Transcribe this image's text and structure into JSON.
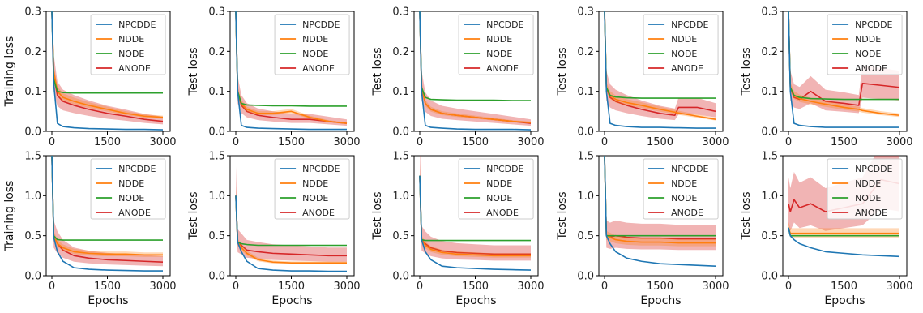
{
  "figure": {
    "legend_entries": [
      "NPCDDE",
      "NDDE",
      "NODE",
      "ANODE"
    ],
    "series_colors": {
      "NPCDDE": "#1f77b4",
      "NDDE": "#ff7f0e",
      "NODE": "#2ca02c",
      "ANODE": "#d62728"
    },
    "xlabel_bottom": "Epochs"
  },
  "chart_data": [
    {
      "type": "line",
      "row": 1,
      "col": 1,
      "ylabel": "Training loss",
      "xlabel": "",
      "xlim": [
        0,
        3000
      ],
      "ylim": [
        0,
        0.3
      ],
      "xticks": [
        0,
        1500,
        3000
      ],
      "yticks": [
        0.0,
        0.1,
        0.2,
        0.3
      ],
      "ytick_labels": [
        "0.0",
        "0.1",
        "0.2",
        "0.3"
      ],
      "legend": "top-right",
      "x": [
        0,
        50,
        150,
        300,
        600,
        1000,
        1500,
        2000,
        2500,
        3000
      ],
      "series": [
        {
          "name": "NPCDDE",
          "values": [
            0.3,
            0.12,
            0.02,
            0.012,
            0.009,
            0.007,
            0.006,
            0.005,
            0.005,
            0.004
          ]
        },
        {
          "name": "NDDE",
          "values": [
            0.3,
            0.15,
            0.1,
            0.085,
            0.075,
            0.065,
            0.055,
            0.045,
            0.038,
            0.035
          ]
        },
        {
          "name": "NODE",
          "values": [
            0.3,
            0.13,
            0.1,
            0.097,
            0.096,
            0.096,
            0.096,
            0.096,
            0.096,
            0.096
          ]
        },
        {
          "name": "ANODE",
          "values": [
            0.3,
            0.14,
            0.09,
            0.075,
            0.065,
            0.055,
            0.045,
            0.038,
            0.03,
            0.025
          ]
        }
      ]
    },
    {
      "type": "line",
      "row": 1,
      "col": 2,
      "ylabel": "Test loss",
      "xlabel": "",
      "xlim": [
        0,
        3000
      ],
      "ylim": [
        0,
        0.3
      ],
      "xticks": [
        0,
        1500,
        3000
      ],
      "yticks": [
        0.0,
        0.1,
        0.2,
        0.3
      ],
      "ytick_labels": [
        "0.0",
        "0.1",
        "0.2",
        "0.3"
      ],
      "legend": "top-right",
      "x": [
        0,
        50,
        150,
        300,
        600,
        1000,
        1500,
        2000,
        2500,
        3000
      ],
      "series": [
        {
          "name": "NPCDDE",
          "values": [
            0.3,
            0.1,
            0.015,
            0.01,
            0.008,
            0.007,
            0.006,
            0.005,
            0.005,
            0.005
          ]
        },
        {
          "name": "NDDE",
          "values": [
            0.3,
            0.1,
            0.07,
            0.055,
            0.045,
            0.045,
            0.05,
            0.035,
            0.025,
            0.02
          ]
        },
        {
          "name": "NODE",
          "values": [
            0.3,
            0.1,
            0.07,
            0.066,
            0.065,
            0.064,
            0.064,
            0.063,
            0.063,
            0.063
          ]
        },
        {
          "name": "ANODE",
          "values": [
            0.3,
            0.1,
            0.065,
            0.05,
            0.04,
            0.035,
            0.03,
            0.03,
            0.025,
            0.02
          ]
        }
      ]
    },
    {
      "type": "line",
      "row": 1,
      "col": 3,
      "ylabel": "Test loss",
      "xlabel": "",
      "xlim": [
        0,
        3000
      ],
      "ylim": [
        0,
        0.3
      ],
      "xticks": [
        0,
        1500,
        3000
      ],
      "yticks": [
        0.0,
        0.1,
        0.2,
        0.3
      ],
      "ytick_labels": [
        "0.0",
        "0.1",
        "0.2",
        "0.3"
      ],
      "legend": "top-right",
      "x": [
        0,
        50,
        150,
        300,
        600,
        1000,
        1500,
        2000,
        2500,
        3000
      ],
      "series": [
        {
          "name": "NPCDDE",
          "values": [
            0.3,
            0.1,
            0.015,
            0.01,
            0.008,
            0.006,
            0.005,
            0.005,
            0.005,
            0.004
          ]
        },
        {
          "name": "NDDE",
          "values": [
            0.3,
            0.11,
            0.07,
            0.055,
            0.045,
            0.04,
            0.035,
            0.03,
            0.025,
            0.022
          ]
        },
        {
          "name": "NODE",
          "values": [
            0.3,
            0.11,
            0.085,
            0.08,
            0.079,
            0.078,
            0.078,
            0.078,
            0.077,
            0.077
          ]
        },
        {
          "name": "ANODE",
          "values": [
            0.3,
            0.11,
            0.07,
            0.055,
            0.045,
            0.04,
            0.035,
            0.03,
            0.025,
            0.02
          ]
        }
      ]
    },
    {
      "type": "line",
      "row": 1,
      "col": 4,
      "ylabel": "Test loss",
      "xlabel": "",
      "xlim": [
        0,
        3000
      ],
      "ylim": [
        0,
        0.3
      ],
      "xticks": [
        0,
        1500,
        3000
      ],
      "yticks": [
        0.0,
        0.1,
        0.2,
        0.3
      ],
      "ytick_labels": [
        "0.0",
        "0.1",
        "0.2",
        "0.3"
      ],
      "legend": "top-right",
      "x": [
        0,
        50,
        150,
        300,
        600,
        1000,
        1500,
        1900,
        2000,
        2500,
        3000
      ],
      "series": [
        {
          "name": "NPCDDE",
          "values": [
            0.3,
            0.1,
            0.02,
            0.015,
            0.012,
            0.01,
            0.01,
            0.009,
            0.009,
            0.008,
            0.008
          ]
        },
        {
          "name": "NDDE",
          "values": [
            0.3,
            0.11,
            0.09,
            0.08,
            0.072,
            0.065,
            0.055,
            0.048,
            0.046,
            0.038,
            0.03
          ]
        },
        {
          "name": "NODE",
          "values": [
            0.3,
            0.11,
            0.09,
            0.086,
            0.084,
            0.083,
            0.083,
            0.083,
            0.083,
            0.083,
            0.083
          ]
        },
        {
          "name": "ANODE",
          "values": [
            0.3,
            0.11,
            0.085,
            0.075,
            0.065,
            0.055,
            0.045,
            0.04,
            0.06,
            0.06,
            0.05
          ]
        }
      ]
    },
    {
      "type": "line",
      "row": 1,
      "col": 5,
      "ylabel": "Test loss",
      "xlabel": "",
      "xlim": [
        0,
        3000
      ],
      "ylim": [
        0,
        0.3
      ],
      "xticks": [
        0,
        1500,
        3000
      ],
      "yticks": [
        0.0,
        0.1,
        0.2,
        0.3
      ],
      "ytick_labels": [
        "0.0",
        "0.1",
        "0.2",
        "0.3"
      ],
      "legend": "top-right",
      "x": [
        0,
        50,
        150,
        300,
        600,
        1000,
        1500,
        1900,
        2000,
        2500,
        3000
      ],
      "series": [
        {
          "name": "NPCDDE",
          "values": [
            0.3,
            0.1,
            0.02,
            0.015,
            0.012,
            0.01,
            0.01,
            0.01,
            0.01,
            0.01,
            0.01
          ]
        },
        {
          "name": "NDDE",
          "values": [
            0.3,
            0.11,
            0.09,
            0.082,
            0.075,
            0.068,
            0.06,
            0.055,
            0.052,
            0.045,
            0.04
          ]
        },
        {
          "name": "NODE",
          "values": [
            0.3,
            0.11,
            0.09,
            0.085,
            0.082,
            0.081,
            0.08,
            0.08,
            0.08,
            0.08,
            0.08
          ]
        },
        {
          "name": "ANODE",
          "values": [
            0.3,
            0.11,
            0.085,
            0.08,
            0.1,
            0.075,
            0.07,
            0.065,
            0.12,
            0.115,
            0.11
          ]
        }
      ]
    },
    {
      "type": "line",
      "row": 2,
      "col": 1,
      "ylabel": "Training loss",
      "xlabel": "Epochs",
      "xlim": [
        0,
        3000
      ],
      "ylim": [
        0,
        1.5
      ],
      "xticks": [
        0,
        1500,
        3000
      ],
      "yticks": [
        0.0,
        0.5,
        1.0,
        1.5
      ],
      "ytick_labels": [
        "0.0",
        "0.5",
        "1.0",
        "1.5"
      ],
      "legend": "top-right",
      "x": [
        0,
        50,
        150,
        300,
        600,
        1000,
        1500,
        2000,
        2500,
        3000
      ],
      "series": [
        {
          "name": "NPCDDE",
          "values": [
            1.5,
            0.48,
            0.3,
            0.18,
            0.1,
            0.08,
            0.07,
            0.065,
            0.06,
            0.06
          ]
        },
        {
          "name": "NDDE",
          "values": [
            1.5,
            0.5,
            0.4,
            0.35,
            0.3,
            0.28,
            0.27,
            0.27,
            0.26,
            0.26
          ]
        },
        {
          "name": "NODE",
          "values": [
            1.5,
            0.5,
            0.45,
            0.445,
            0.445,
            0.445,
            0.445,
            0.445,
            0.445,
            0.445
          ]
        },
        {
          "name": "ANODE",
          "values": [
            1.5,
            0.5,
            0.4,
            0.32,
            0.25,
            0.22,
            0.2,
            0.19,
            0.18,
            0.17
          ]
        }
      ]
    },
    {
      "type": "line",
      "row": 2,
      "col": 2,
      "ylabel": "Test loss",
      "xlabel": "Epochs",
      "xlim": [
        0,
        3000
      ],
      "ylim": [
        0,
        1.5
      ],
      "xticks": [
        0,
        1500,
        3000
      ],
      "yticks": [
        0.0,
        0.5,
        1.0,
        1.5
      ],
      "ytick_labels": [
        "0.0",
        "0.5",
        "1.0",
        "1.5"
      ],
      "legend": "top-right",
      "x": [
        0,
        50,
        150,
        300,
        600,
        1000,
        1500,
        2000,
        2500,
        3000
      ],
      "series": [
        {
          "name": "NPCDDE",
          "values": [
            1.0,
            0.42,
            0.3,
            0.18,
            0.09,
            0.07,
            0.06,
            0.06,
            0.055,
            0.055
          ]
        },
        {
          "name": "NDDE",
          "values": [
            1.0,
            0.42,
            0.35,
            0.28,
            0.2,
            0.17,
            0.16,
            0.16,
            0.16,
            0.16
          ]
        },
        {
          "name": "NODE",
          "values": [
            1.0,
            0.42,
            0.4,
            0.39,
            0.38,
            0.38,
            0.38,
            0.38,
            0.38,
            0.38
          ]
        },
        {
          "name": "ANODE",
          "values": [
            1.0,
            0.42,
            0.38,
            0.32,
            0.3,
            0.28,
            0.27,
            0.26,
            0.25,
            0.25
          ]
        }
      ]
    },
    {
      "type": "line",
      "row": 2,
      "col": 3,
      "ylabel": "Test loss",
      "xlabel": "Epochs",
      "xlim": [
        0,
        3000
      ],
      "ylim": [
        0,
        1.5
      ],
      "xticks": [
        0,
        1500,
        3000
      ],
      "yticks": [
        0.0,
        0.5,
        1.0,
        1.5
      ],
      "ytick_labels": [
        "0.0",
        "0.5",
        "1.0",
        "1.5"
      ],
      "legend": "top-right",
      "x": [
        0,
        50,
        150,
        300,
        600,
        1000,
        1500,
        2000,
        2500,
        3000
      ],
      "series": [
        {
          "name": "NPCDDE",
          "values": [
            1.25,
            0.45,
            0.3,
            0.2,
            0.12,
            0.1,
            0.09,
            0.08,
            0.075,
            0.07
          ]
        },
        {
          "name": "NDDE",
          "values": [
            1.25,
            0.45,
            0.38,
            0.33,
            0.29,
            0.27,
            0.26,
            0.25,
            0.25,
            0.25
          ]
        },
        {
          "name": "NODE",
          "values": [
            1.25,
            0.45,
            0.44,
            0.44,
            0.44,
            0.44,
            0.44,
            0.44,
            0.44,
            0.44
          ]
        },
        {
          "name": "ANODE",
          "values": [
            1.25,
            0.45,
            0.4,
            0.35,
            0.31,
            0.29,
            0.28,
            0.27,
            0.27,
            0.27
          ]
        }
      ]
    },
    {
      "type": "line",
      "row": 2,
      "col": 4,
      "ylabel": "Test loss",
      "xlabel": "Epochs",
      "xlim": [
        0,
        3000
      ],
      "ylim": [
        0,
        1.5
      ],
      "xticks": [
        0,
        1500,
        3000
      ],
      "yticks": [
        0.0,
        0.5,
        1.0,
        1.5
      ],
      "ytick_labels": [
        "0.0",
        "0.5",
        "1.0",
        "1.5"
      ],
      "legend": "top-right",
      "x": [
        0,
        50,
        150,
        300,
        600,
        1000,
        1500,
        2000,
        2500,
        3000
      ],
      "series": [
        {
          "name": "NPCDDE",
          "values": [
            1.5,
            0.5,
            0.4,
            0.3,
            0.22,
            0.18,
            0.15,
            0.14,
            0.13,
            0.12
          ]
        },
        {
          "name": "NDDE",
          "values": [
            1.5,
            0.5,
            0.48,
            0.45,
            0.43,
            0.42,
            0.42,
            0.41,
            0.41,
            0.41
          ]
        },
        {
          "name": "NODE",
          "values": [
            1.5,
            0.5,
            0.5,
            0.5,
            0.5,
            0.5,
            0.5,
            0.5,
            0.5,
            0.5
          ]
        },
        {
          "name": "ANODE",
          "values": [
            1.5,
            0.5,
            0.48,
            0.5,
            0.48,
            0.47,
            0.47,
            0.46,
            0.46,
            0.46
          ]
        }
      ]
    },
    {
      "type": "line",
      "row": 2,
      "col": 5,
      "ylabel": "Test loss",
      "xlabel": "Epochs",
      "xlim": [
        0,
        3000
      ],
      "ylim": [
        0,
        1.5
      ],
      "xticks": [
        0,
        1500,
        3000
      ],
      "yticks": [
        0.0,
        0.5,
        1.0,
        1.5
      ],
      "ytick_labels": [
        "0.0",
        "0.5",
        "1.0",
        "1.5"
      ],
      "legend": "top-right",
      "x": [
        0,
        50,
        150,
        300,
        600,
        1000,
        1500,
        2000,
        2500,
        3000
      ],
      "series": [
        {
          "name": "NPCDDE",
          "values": [
            0.6,
            0.5,
            0.45,
            0.4,
            0.35,
            0.3,
            0.28,
            0.26,
            0.25,
            0.24
          ]
        },
        {
          "name": "NDDE",
          "values": [
            0.6,
            0.53,
            0.53,
            0.53,
            0.53,
            0.53,
            0.53,
            0.53,
            0.53,
            0.53
          ]
        },
        {
          "name": "NODE",
          "values": [
            0.6,
            0.5,
            0.5,
            0.5,
            0.5,
            0.5,
            0.5,
            0.5,
            0.5,
            0.5
          ]
        },
        {
          "name": "ANODE",
          "values": [
            0.9,
            0.8,
            0.95,
            0.85,
            0.9,
            0.8,
            0.85,
            0.9,
            1.2,
            1.15
          ]
        }
      ]
    }
  ]
}
